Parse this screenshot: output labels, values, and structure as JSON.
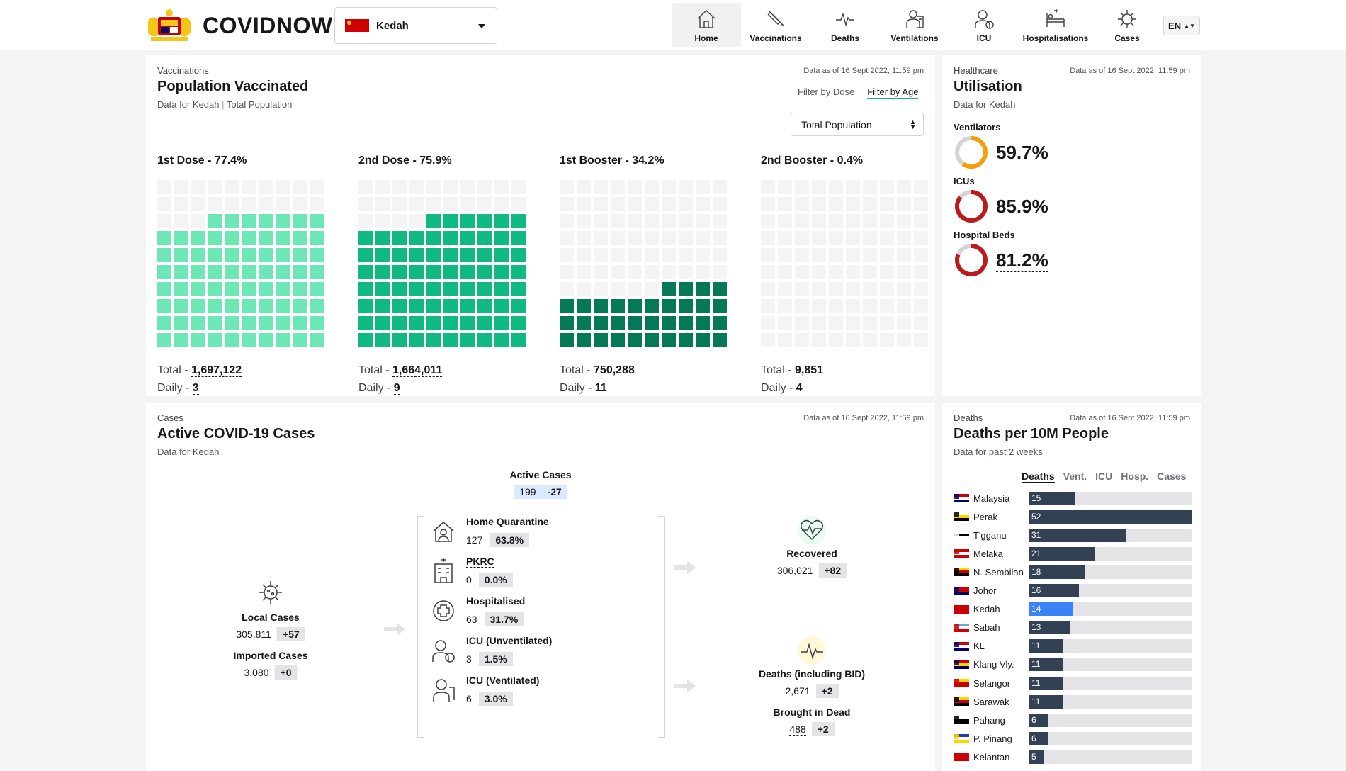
{
  "header": {
    "brand": "COVIDNOW",
    "state": "Kedah",
    "lang": "EN",
    "nav": [
      {
        "label": "Home",
        "icon": "home-icon",
        "active": true
      },
      {
        "label": "Vaccinations",
        "icon": "syringe-icon"
      },
      {
        "label": "Deaths",
        "icon": "pulse-icon"
      },
      {
        "label": "Ventilations",
        "icon": "ventilator-icon"
      },
      {
        "label": "ICU",
        "icon": "icu-icon"
      },
      {
        "label": "Hospitalisations",
        "icon": "hospital-bed-icon"
      },
      {
        "label": "Cases",
        "icon": "virus-icon"
      }
    ]
  },
  "vaccination": {
    "eyebrow": "Vaccinations",
    "title": "Population Vaccinated",
    "sub_state": "Data for Kedah",
    "sub_pop": "Total Population",
    "asof": "Data as of 16 Sept 2022, 11:59 pm",
    "filter_dose": "Filter by Dose",
    "filter_age": "Filter by Age",
    "population_select": "Total Population",
    "doses": [
      {
        "label": "1st Dose - ",
        "pct": "77.4%",
        "pct_value": 77.4,
        "total": "1,697,122",
        "daily": "3",
        "color": "#6ee7b7"
      },
      {
        "label": "2nd Dose - ",
        "pct": "75.9%",
        "pct_value": 75.9,
        "total": "1,664,011",
        "daily": "9",
        "color": "#10b981"
      },
      {
        "label": "1st Booster - ",
        "pct": "34.2%",
        "pct_value": 34.2,
        "total": "750,288",
        "daily": "11",
        "color": "#047857"
      },
      {
        "label": "2nd Booster - ",
        "pct": "0.4%",
        "pct_value": 0.4,
        "total": "9,851",
        "daily": "4",
        "color": "#065f46"
      }
    ],
    "total_prefix": "Total - ",
    "daily_prefix": "Daily - "
  },
  "utilisation": {
    "eyebrow": "Healthcare",
    "title": "Utilisation",
    "sub": "Data for Kedah",
    "asof": "Data as of 16 Sept 2022, 11:59 pm",
    "items": [
      {
        "name": "Ventilators",
        "value": "59.7%",
        "pct": 59.7,
        "color": "#f59e0b"
      },
      {
        "name": "ICUs",
        "value": "85.9%",
        "pct": 85.9,
        "color": "#b91c1c"
      },
      {
        "name": "Hospital Beds",
        "value": "81.2%",
        "pct": 81.2,
        "color": "#b91c1c"
      }
    ]
  },
  "cases": {
    "eyebrow": "Cases",
    "title": "Active COVID-19 Cases",
    "sub": "Data for Kedah",
    "asof": "Data as of 16 Sept 2022, 11:59 pm",
    "active": {
      "label": "Active Cases",
      "value": "199",
      "delta": "-27"
    },
    "local": {
      "label": "Local Cases",
      "value": "305,811",
      "delta": "+57"
    },
    "imported": {
      "label": "Imported Cases",
      "value": "3,080",
      "delta": "+0"
    },
    "categories": [
      {
        "label": "Home Quarantine",
        "value": "127",
        "pct": "63.8%",
        "icon": "home-quarantine-icon"
      },
      {
        "label": "PKRC",
        "value": "0",
        "pct": "0.0%",
        "icon": "pkrc-building-icon"
      },
      {
        "label": "Hospitalised",
        "value": "63",
        "pct": "31.7%",
        "icon": "hospital-cross-icon"
      },
      {
        "label": "ICU (Unventilated)",
        "value": "3",
        "pct": "1.5%",
        "icon": "icu-patient-icon"
      },
      {
        "label": "ICU (Ventilated)",
        "value": "6",
        "pct": "3.0%",
        "icon": "ventilated-patient-icon"
      }
    ],
    "recovered": {
      "label": "Recovered",
      "value": "306,021",
      "delta": "+82"
    },
    "deaths": {
      "label": "Deaths (including BID)",
      "value": "2,671",
      "delta": "+2"
    },
    "bid": {
      "label": "Brought in Dead",
      "value": "488",
      "delta": "+2"
    }
  },
  "deaths_panel": {
    "eyebrow": "Deaths",
    "title": "Deaths per 10M People",
    "sub": "Data for past 2 weeks",
    "asof": "Data as of 16 Sept 2022, 11:59 pm",
    "tabs": [
      "Deaths",
      "Vent.",
      "ICU",
      "Hosp.",
      "Cases"
    ],
    "max": 52,
    "rows": [
      {
        "state": "Malaysia",
        "value": 15,
        "flag": [
          "#cc0000",
          "#ffffff",
          "#010066"
        ]
      },
      {
        "state": "Perak",
        "value": 52,
        "flag": [
          "#ffffff",
          "#ffd700",
          "#000000"
        ]
      },
      {
        "state": "T'gganu",
        "value": 31,
        "flag": [
          "#ffffff",
          "#000000",
          "#ffffff"
        ]
      },
      {
        "state": "Melaka",
        "value": 21,
        "flag": [
          "#cc0000",
          "#ffffff",
          "#cc0000"
        ]
      },
      {
        "state": "N. Sembilan",
        "value": 18,
        "flag": [
          "#ffd700",
          "#cc0000",
          "#000000"
        ]
      },
      {
        "state": "Johor",
        "value": 16,
        "flag": [
          "#cc0000",
          "#cc0000",
          "#010066"
        ]
      },
      {
        "state": "Kedah",
        "value": 14,
        "flag": [
          "#cc0000",
          "#cc0000",
          "#cc0000"
        ],
        "highlight": true
      },
      {
        "state": "Sabah",
        "value": 13,
        "flag": [
          "#5fa8e0",
          "#ffffff",
          "#cc0000"
        ]
      },
      {
        "state": "KL",
        "value": 11,
        "flag": [
          "#cc0000",
          "#ffffff",
          "#010066"
        ]
      },
      {
        "state": "Klang Vly.",
        "value": 11,
        "flag": [
          "#cc0000",
          "#ffd700",
          "#010066"
        ]
      },
      {
        "state": "Selangor",
        "value": 11,
        "flag": [
          "#ffd700",
          "#cc0000",
          "#cc0000"
        ]
      },
      {
        "state": "Sarawak",
        "value": 11,
        "flag": [
          "#ffd700",
          "#cc0000",
          "#000000"
        ]
      },
      {
        "state": "Pahang",
        "value": 6,
        "flag": [
          "#ffffff",
          "#000000",
          "#000000"
        ]
      },
      {
        "state": "P. Pinang",
        "value": 6,
        "flag": [
          "#1e40af",
          "#ffffff",
          "#ffd700"
        ]
      },
      {
        "state": "Kelantan",
        "value": 5,
        "flag": [
          "#cc0000",
          "#cc0000",
          "#cc0000"
        ]
      }
    ]
  }
}
